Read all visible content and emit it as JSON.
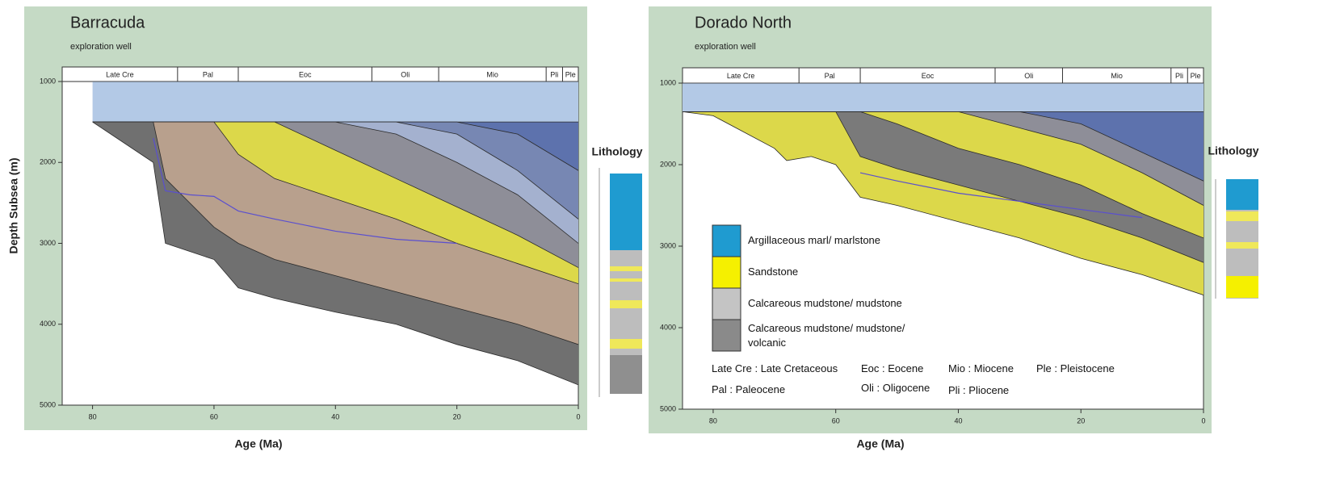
{
  "chart_data": [
    {
      "type": "burial",
      "title": "Barracuda",
      "subtitle": "exploration well",
      "x_label": "Age (Ma)",
      "y_label": "Depth Subsea (m)",
      "column_title": "Lithology",
      "xlim": [
        85,
        0
      ],
      "xticks": [
        80,
        60,
        40,
        20,
        0
      ],
      "ylim": [
        1000,
        5000
      ],
      "yticks": [
        1000,
        2000,
        3000,
        4000,
        5000
      ],
      "periods": [
        {
          "label": "Late Cre",
          "start": 85,
          "end": 66
        },
        {
          "label": "Pal",
          "start": 66,
          "end": 56
        },
        {
          "label": "Eoc",
          "start": 56,
          "end": 34
        },
        {
          "label": "Oli",
          "start": 34,
          "end": 23
        },
        {
          "label": "Mio",
          "start": 23,
          "end": 5.3
        },
        {
          "label": "Pli",
          "start": 5.3,
          "end": 2.6
        },
        {
          "label": "Ple",
          "start": 2.6,
          "end": 0
        }
      ],
      "x": [
        80,
        70,
        68,
        64,
        60,
        56,
        50,
        40,
        30,
        20,
        10,
        0
      ],
      "series": [
        {
          "values": [
            1000,
            1000,
            1000,
            1000,
            1000,
            1000,
            1000,
            1000,
            1000,
            1000,
            1000,
            1000
          ]
        },
        {
          "color": "#b3c9e6",
          "values": [
            1500,
            1500,
            1500,
            1500,
            1500,
            1500,
            1500,
            1500,
            1500,
            1500,
            1500,
            1500
          ]
        },
        {
          "color": "#5d72ad",
          "values": [
            1500,
            1500,
            1500,
            1500,
            1500,
            1500,
            1500,
            1500,
            1500,
            1500,
            1650,
            2100
          ]
        },
        {
          "color": "#7787b3",
          "values": [
            1500,
            1500,
            1500,
            1500,
            1500,
            1500,
            1500,
            1500,
            1500,
            1650,
            2100,
            2700
          ]
        },
        {
          "color": "#a4b1cf",
          "values": [
            1500,
            1500,
            1500,
            1500,
            1500,
            1500,
            1500,
            1500,
            1650,
            2000,
            2400,
            3000
          ]
        },
        {
          "color": "#8e8e98",
          "values": [
            1500,
            1500,
            1500,
            1500,
            1500,
            1500,
            1500,
            1850,
            2200,
            2550,
            2900,
            3300
          ]
        },
        {
          "color": "#dcd84a",
          "values": [
            1500,
            1500,
            1500,
            1500,
            1500,
            1900,
            2200,
            2450,
            2700,
            3000,
            3250,
            3500
          ]
        },
        {
          "color": "#b8a08d",
          "values": [
            1500,
            1500,
            2200,
            2500,
            2800,
            3000,
            3200,
            3400,
            3600,
            3800,
            4000,
            4250
          ]
        },
        {
          "color": "#707070",
          "values": [
            1500,
            2000,
            3000,
            3100,
            3200,
            3550,
            3680,
            3850,
            4000,
            4250,
            4450,
            4750
          ]
        },
        {
          "type": "line",
          "color": "#5a4fcf",
          "values": [
            null,
            1700,
            2350,
            2400,
            2420,
            2600,
            2700,
            2850,
            2950,
            3000,
            null,
            null
          ]
        }
      ]
    },
    {
      "type": "burial",
      "title": "Dorado North",
      "subtitle": "exploration well",
      "x_label": "Age (Ma)",
      "column_title": "Lithology",
      "xlim": [
        85,
        0
      ],
      "xticks": [
        80,
        60,
        40,
        20,
        0
      ],
      "ylim": [
        1000,
        5000
      ],
      "yticks": [
        1000,
        2000,
        3000,
        4000,
        5000
      ],
      "periods": [
        {
          "label": "Late Cre",
          "start": 85,
          "end": 66
        },
        {
          "label": "Pal",
          "start": 66,
          "end": 56
        },
        {
          "label": "Eoc",
          "start": 56,
          "end": 34
        },
        {
          "label": "Oli",
          "start": 34,
          "end": 23
        },
        {
          "label": "Mio",
          "start": 23,
          "end": 5.3
        },
        {
          "label": "Pli",
          "start": 5.3,
          "end": 2.6
        },
        {
          "label": "Ple",
          "start": 2.6,
          "end": 0
        }
      ],
      "x": [
        85,
        80,
        70,
        68,
        64,
        60,
        56,
        50,
        40,
        30,
        20,
        10,
        0
      ],
      "series": [
        {
          "values": [
            1000,
            1000,
            1000,
            1000,
            1000,
            1000,
            1000,
            1000,
            1000,
            1000,
            1000,
            1000,
            1000
          ]
        },
        {
          "color": "#b3c9e6",
          "values": [
            1350,
            1350,
            1350,
            1350,
            1350,
            1350,
            1350,
            1350,
            1350,
            1350,
            1350,
            1350,
            1350
          ]
        },
        {
          "color": "#5d72ad",
          "values": [
            1350,
            1350,
            1350,
            1350,
            1350,
            1350,
            1350,
            1350,
            1350,
            1350,
            1500,
            1850,
            2200
          ]
        },
        {
          "color": "#8e8e98",
          "values": [
            1350,
            1350,
            1350,
            1350,
            1350,
            1350,
            1350,
            1350,
            1350,
            1550,
            1750,
            2100,
            2500
          ]
        },
        {
          "color": "#dcd84a",
          "values": [
            1350,
            1350,
            1350,
            1350,
            1350,
            1350,
            1350,
            1500,
            1800,
            2000,
            2250,
            2600,
            2900
          ]
        },
        {
          "color": "#7a7a7a",
          "values": [
            1350,
            1350,
            1350,
            1350,
            1350,
            1350,
            1900,
            2050,
            2250,
            2450,
            2650,
            2900,
            3200
          ]
        },
        {
          "color": "#dcd84a",
          "values": [
            1350,
            1400,
            1800,
            1950,
            1900,
            2000,
            2400,
            2500,
            2700,
            2900,
            3150,
            3350,
            3600
          ]
        },
        {
          "type": "line",
          "color": "#5a4fcf",
          "values": [
            null,
            null,
            null,
            null,
            null,
            null,
            2100,
            2200,
            2350,
            2450,
            2550,
            2650,
            null
          ]
        }
      ],
      "legend": [
        {
          "label": "Argillaceous marl/ marlstone",
          "color": "#1f9bd0"
        },
        {
          "label": "Sandstone",
          "color": "#f5f000"
        },
        {
          "label": "Calcareous mudstone/ mudstone",
          "color": "#c4c4c4"
        },
        {
          "label": "Calcareous mudstone/ mudstone/ volcanic",
          "color": "#8a8a8a"
        }
      ],
      "abbreviations": [
        "Late Cre : Late Cretaceous",
        "Eoc : Eocene",
        "Mio : Miocene",
        "Ple : Pleistocene",
        "Pal : Paleocene",
        "Oli : Oligocene",
        "Pli : Pliocene"
      ]
    }
  ]
}
